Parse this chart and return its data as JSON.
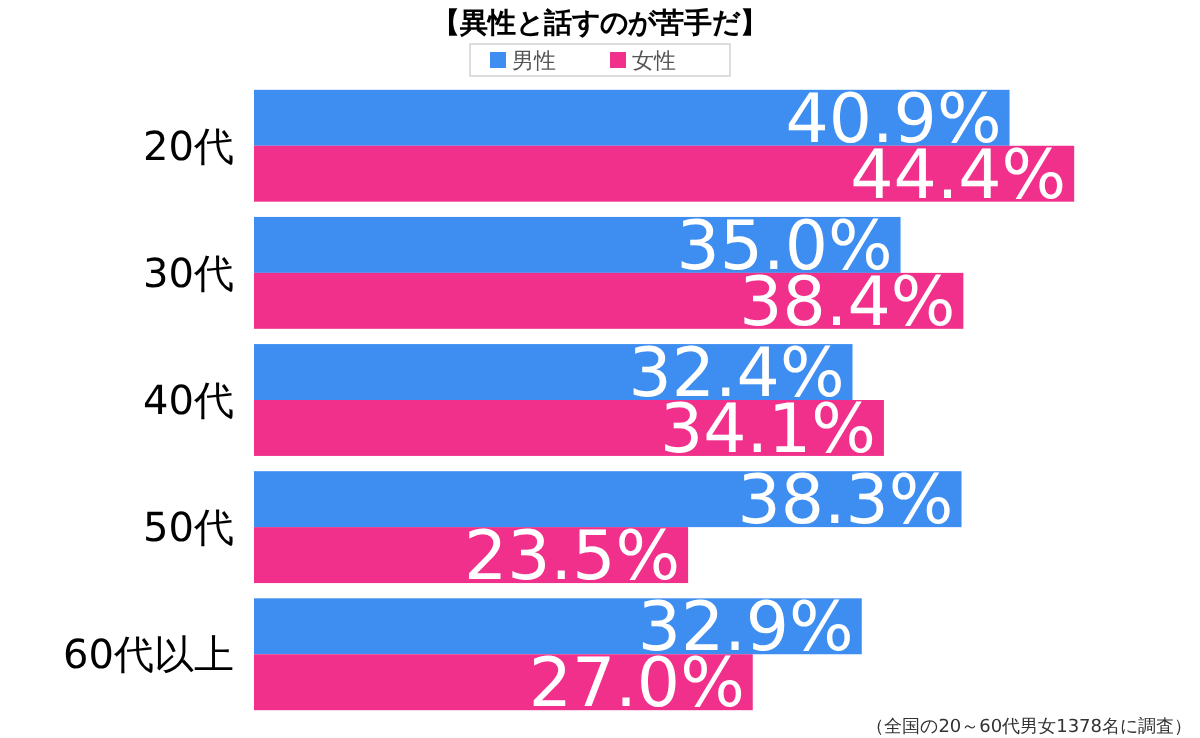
{
  "chart_data": {
    "type": "bar",
    "orientation": "horizontal",
    "title": "【異性と話すのが苦手だ】",
    "categories": [
      "20代",
      "30代",
      "40代",
      "50代",
      "60代以上"
    ],
    "series": [
      {
        "name": "男性",
        "color": "#3d8ef0",
        "values": [
          40.9,
          35.0,
          32.4,
          38.3,
          32.9
        ],
        "value_labels": [
          "40.9%",
          "35.0%",
          "32.4%",
          "38.3%",
          "32.9%"
        ]
      },
      {
        "name": "女性",
        "color": "#f0308a",
        "values": [
          44.4,
          38.4,
          34.1,
          23.5,
          27.0
        ],
        "value_labels": [
          "44.4%",
          "38.4%",
          "34.1%",
          "23.5%",
          "27.0%"
        ]
      }
    ],
    "tick_labels": "y",
    "legend": "top",
    "grid": false,
    "annotations": [
      "（全国の20～60代男女1378名に調査）"
    ]
  }
}
